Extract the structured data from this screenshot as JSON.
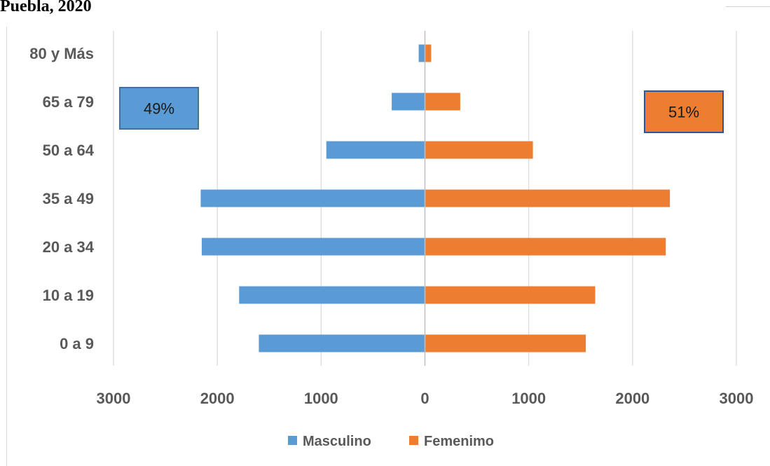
{
  "title": "Puebla, 2020",
  "chart_data": {
    "type": "bar",
    "orientation": "horizontal",
    "categories": [
      "80 y Más",
      "65 a 79",
      "50 a 64",
      "35 a 49",
      "20 a 34",
      "10 a 19",
      "0 a 9"
    ],
    "series": [
      {
        "name": "Masculino",
        "color": "#5b9bd5",
        "direction": "left",
        "values": [
          60,
          320,
          950,
          2160,
          2150,
          1790,
          1600
        ]
      },
      {
        "name": "Femenimo",
        "color": "#ed7d31",
        "direction": "right",
        "values": [
          60,
          340,
          1040,
          2360,
          2320,
          1640,
          1550
        ]
      }
    ],
    "xlim": [
      -3000,
      3000
    ],
    "xticks": [
      -3000,
      -2000,
      -1000,
      0,
      1000,
      2000,
      3000
    ],
    "xtick_labels": [
      "3000",
      "2000",
      "1000",
      "0",
      "1000",
      "2000",
      "3000"
    ],
    "grid": true,
    "legend_position": "bottom",
    "annotations": [
      {
        "text": "49%",
        "series": "Masculino",
        "color": "#5b9bd5",
        "border": "#41719c",
        "placement": "upper-left"
      },
      {
        "text": "51%",
        "series": "Femenimo",
        "color": "#ed7d31",
        "border": "#2f5597",
        "placement": "upper-right"
      }
    ]
  }
}
